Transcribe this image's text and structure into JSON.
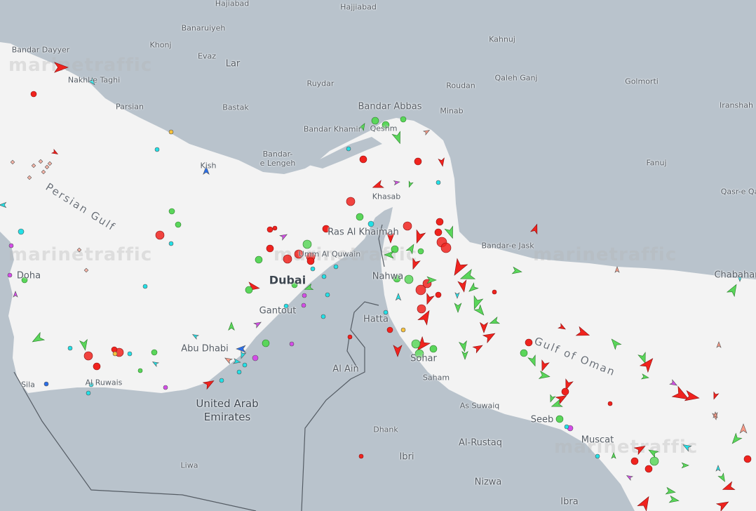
{
  "map": {
    "watermark": "marinetraffic",
    "colors": {
      "sea": "#f3f3f3",
      "land": "#b9c3cc",
      "border": "#555c64",
      "cargo": "#f0231e",
      "tanker_light": "#fc6d6d",
      "passenger": "#5ad65a",
      "tug": "#22e0e6",
      "pleasure": "#d44ce8",
      "fishing": "#fa9a86",
      "hsc": "#f7c23c",
      "unknown": "#2a6ee8"
    },
    "places": {
      "hajiabad": "Hajiabad",
      "hajjiabad": "Hajjiabad",
      "banaruiyeh": "Banaruiyeh",
      "bandar_dayyer": "Bandar Dayyer",
      "khonj": "Khonj",
      "evaz": "Evaz",
      "lar": "Lar",
      "kahnuj": "Kahnuj",
      "nakhl_e_taghi": "Nakhl-e Taghi",
      "ruydar": "Ruydar",
      "roudan": "Roudan",
      "qaleh_ganj": "Qaleh Ganj",
      "golmorti": "Golmorti",
      "parsian": "Parsian",
      "bastak": "Bastak",
      "bandar_abbas": "Bandar Abbas",
      "minab": "Minab",
      "iranshahr": "Iranshah",
      "bandar_khamir": "Bandar Khamir",
      "qeshm": "Qeshm",
      "bandar_e_lengeh": "Bandar-\ne Lengeh",
      "fanuj": "Fanuj",
      "kish": "Kish",
      "khasab": "Khasab",
      "qasr_e_qand": "Qasr-e Qa",
      "ras_al_khaimah": "Ras Al Khaimah",
      "bandar_e_jask": "Bandar-e Jask",
      "umm_al_quwain": "Umm Al Quwain",
      "doha": "Doha",
      "dubai": "Dubai",
      "nahwa": "Nahwa",
      "chabahar": "Chabahar",
      "gantout": "Gantout",
      "hatta": "Hatta",
      "abu_dhabi": "Abu Dhabi",
      "sohar": "Sohar",
      "al_ain": "Al Ain",
      "saham": "Saham",
      "sila": "Sila",
      "al_ruwais": "Al Ruwais",
      "uae": "United Arab\nEmirates",
      "as_suwaiq": "As Suwaiq",
      "seeb": "Seeb",
      "muscat": "Muscat",
      "dhank": "Dhank",
      "al_rustaq": "Al-Rustaq",
      "ibri": "Ibri",
      "liwa": "Liwa",
      "nizwa": "Nizwa",
      "ibra": "Ibra"
    },
    "seas": {
      "persian_gulf": "Persian Gulf",
      "gulf_of_oman": "Gulf of Oman"
    }
  }
}
